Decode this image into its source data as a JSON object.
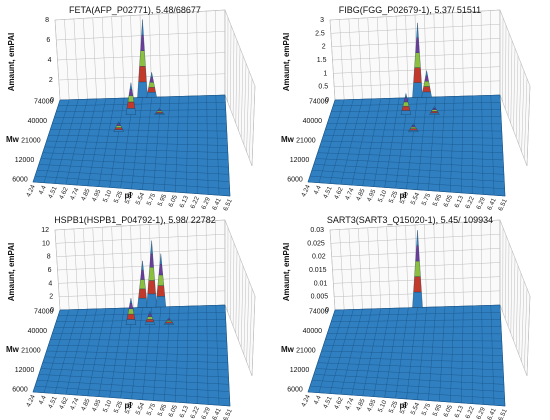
{
  "chart_data": [
    {
      "type": "surface3d",
      "title": "FETA(AFP_P02771), 5.48/68677",
      "zlabel": "Amaunt, emPAI",
      "ylabel": "Mw",
      "xlabel": "pI",
      "z_ticks": [
        "0",
        "2",
        "4",
        "6",
        "8"
      ],
      "zlim": [
        0,
        8
      ],
      "mw_ticks": [
        "6000",
        "12000",
        "21000",
        "40000",
        "74000"
      ],
      "pi_ticks": [
        "4.24",
        "4.4",
        "4.51",
        "4.62",
        "4.74",
        "4.85",
        "4.95",
        "5.10",
        "5.25",
        "5.40",
        "5.54",
        "5.75",
        "5.95",
        "6.05",
        "6.13",
        "6.22",
        "6.29",
        "6.41",
        "6.51"
      ],
      "peaks": [
        {
          "pi": "5.40",
          "mw": "74000",
          "value": 7.8
        },
        {
          "pi": "5.54",
          "mw": "74000",
          "value": 2.5
        },
        {
          "pi": "5.10",
          "mw": "21000",
          "value": 1.0
        },
        {
          "pi": "5.25",
          "mw": "40000",
          "value": 3.2
        },
        {
          "pi": "5.75",
          "mw": "40000",
          "value": 0.6
        }
      ]
    },
    {
      "type": "surface3d",
      "title": "FIBG(FGG_P02679-1), 5.37/ 51511",
      "zlabel": "Amaunt, emPAI",
      "ylabel": "Mw",
      "xlabel": "pI",
      "z_ticks": [
        "0",
        "0.5",
        "1",
        "1.5",
        "2",
        "2.5",
        "3"
      ],
      "zlim": [
        0,
        3
      ],
      "mw_ticks": [
        "6000",
        "12000",
        "21000",
        "40000",
        "74000"
      ],
      "pi_ticks": [
        "4.24",
        "4.4",
        "4.51",
        "4.62",
        "4.74",
        "4.85",
        "4.95",
        "5.10",
        "5.25",
        "5.40",
        "5.54",
        "5.75",
        "5.95",
        "6.05",
        "6.13",
        "6.22",
        "6.29",
        "6.41",
        "6.51"
      ],
      "peaks": [
        {
          "pi": "5.40",
          "mw": "74000",
          "value": 2.8
        },
        {
          "pi": "5.54",
          "mw": "74000",
          "value": 1.0
        },
        {
          "pi": "5.25",
          "mw": "40000",
          "value": 0.8
        },
        {
          "pi": "5.40",
          "mw": "21000",
          "value": 0.3
        },
        {
          "pi": "5.75",
          "mw": "40000",
          "value": 0.3
        }
      ]
    },
    {
      "type": "surface3d",
      "title": "HSPB1(HSPB1_P04792-1), 5.98/ 22782",
      "zlabel": "Amaunt, emPAI",
      "ylabel": "Mw",
      "xlabel": "pI",
      "z_ticks": [
        "0",
        "2",
        "4",
        "6",
        "8",
        "10",
        "12"
      ],
      "zlim": [
        0,
        12
      ],
      "mw_ticks": [
        "6000",
        "12000",
        "21000",
        "40000",
        "74000"
      ],
      "pi_ticks": [
        "4.24",
        "4.4",
        "4.51",
        "4.62",
        "4.74",
        "4.85",
        "4.95",
        "5.10",
        "5.25",
        "5.40",
        "5.54",
        "5.75",
        "5.95",
        "6.05",
        "6.13",
        "6.22",
        "6.29",
        "6.41",
        "6.51"
      ],
      "peaks": [
        {
          "pi": "5.40",
          "mw": "74000",
          "value": 7.0
        },
        {
          "pi": "5.54",
          "mw": "74000",
          "value": 10.0
        },
        {
          "pi": "5.75",
          "mw": "74000",
          "value": 8.0
        },
        {
          "pi": "5.25",
          "mw": "40000",
          "value": 4.0
        },
        {
          "pi": "5.54",
          "mw": "40000",
          "value": 2.0
        },
        {
          "pi": "5.95",
          "mw": "40000",
          "value": 1.0
        }
      ]
    },
    {
      "type": "surface3d",
      "title": "SART3(SART3_Q15020-1), 5.45/ 109934",
      "zlabel": "Amaunt, emPAI",
      "ylabel": "Mw",
      "xlabel": "pI",
      "z_ticks": [
        "0",
        "0.005",
        "0.01",
        "0.015",
        "0.02",
        "0.025",
        "0.03"
      ],
      "zlim": [
        0,
        0.03
      ],
      "mw_ticks": [
        "6000",
        "12000",
        "21000",
        "40000",
        "74000"
      ],
      "pi_ticks": [
        "4.24",
        "4.4",
        "4.51",
        "4.62",
        "4.74",
        "4.85",
        "4.95",
        "5.10",
        "5.25",
        "5.40",
        "5.54",
        "5.75",
        "5.95",
        "6.05",
        "6.13",
        "6.22",
        "6.29",
        "6.41",
        "6.51"
      ],
      "peaks": [
        {
          "pi": "5.40",
          "mw": "74000",
          "value": 0.029
        }
      ]
    }
  ],
  "colors": {
    "surface": "#2f7fc1",
    "surface_dark": "#1d5d95",
    "grid": "#bdbdbd",
    "band_red": "#c0392b",
    "band_green": "#8cbf3f",
    "band_purple": "#6a3d9a",
    "band_blue": "#2f7fc1"
  }
}
